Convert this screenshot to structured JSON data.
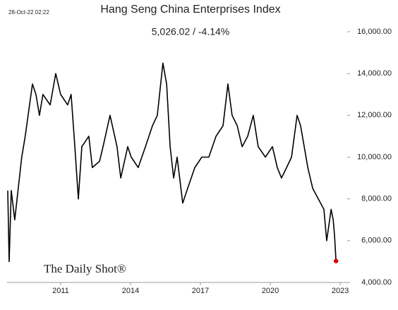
{
  "chart_data": {
    "type": "line",
    "title": "Hang Seng China Enterprises Index",
    "subtitle": "5,026.02  /  -4.14%",
    "timestamp": "28-Oct-22 02:22",
    "watermark": "The Daily Shot®",
    "xlim": [
      2008.7,
      2023.3
    ],
    "xticks": [
      2011,
      2014,
      2017,
      2020,
      2023
    ],
    "ylim": [
      4000,
      16000
    ],
    "yticks": [
      {
        "value": 4000,
        "label": "4,000.00"
      },
      {
        "value": 6000,
        "label": "6,000.00"
      },
      {
        "value": 8000,
        "label": "8,000.00"
      },
      {
        "value": 10000,
        "label": "10,000.00"
      },
      {
        "value": 12000,
        "label": "12,000.00"
      },
      {
        "value": 14000,
        "label": "14,000.00"
      },
      {
        "value": 16000,
        "label": "16,000.00"
      }
    ],
    "x": [
      2008.73,
      2008.79,
      2008.88,
      2009.03,
      2009.33,
      2009.48,
      2009.79,
      2009.94,
      2010.09,
      2010.24,
      2010.55,
      2010.79,
      2011.0,
      2011.3,
      2011.45,
      2011.61,
      2011.76,
      2011.91,
      2012.21,
      2012.36,
      2012.67,
      2012.82,
      2013.12,
      2013.42,
      2013.58,
      2013.88,
      2014.03,
      2014.33,
      2014.64,
      2014.94,
      2015.15,
      2015.39,
      2015.55,
      2015.7,
      2015.85,
      2016.0,
      2016.24,
      2016.45,
      2016.76,
      2017.06,
      2017.36,
      2017.67,
      2017.97,
      2018.18,
      2018.36,
      2018.58,
      2018.79,
      2019.03,
      2019.27,
      2019.48,
      2019.79,
      2020.09,
      2020.3,
      2020.48,
      2020.7,
      2020.91,
      2021.15,
      2021.3,
      2021.61,
      2021.82,
      2022.06,
      2022.3,
      2022.42,
      2022.61,
      2022.7,
      2022.76,
      2022.82
    ],
    "series": [
      {
        "name": "Hang Seng China Enterprises Index",
        "color": "#000000",
        "values": [
          8400,
          5000,
          8400,
          7000,
          10000,
          11000,
          13500,
          13000,
          12000,
          13000,
          12500,
          14000,
          13000,
          12500,
          13000,
          10500,
          8000,
          10500,
          11000,
          9500,
          9800,
          10500,
          12000,
          10500,
          9000,
          10500,
          10000,
          9500,
          10500,
          11500,
          12000,
          14500,
          13500,
          10500,
          9000,
          10000,
          7800,
          8500,
          9500,
          10000,
          10000,
          11000,
          11500,
          13500,
          12000,
          11500,
          10500,
          11000,
          12000,
          10500,
          10000,
          10500,
          9500,
          9000,
          9500,
          10000,
          12000,
          11500,
          9500,
          8500,
          8000,
          7500,
          6000,
          7500,
          7000,
          6200,
          5026.02
        ]
      }
    ],
    "end_marker_color": "#e00000"
  }
}
